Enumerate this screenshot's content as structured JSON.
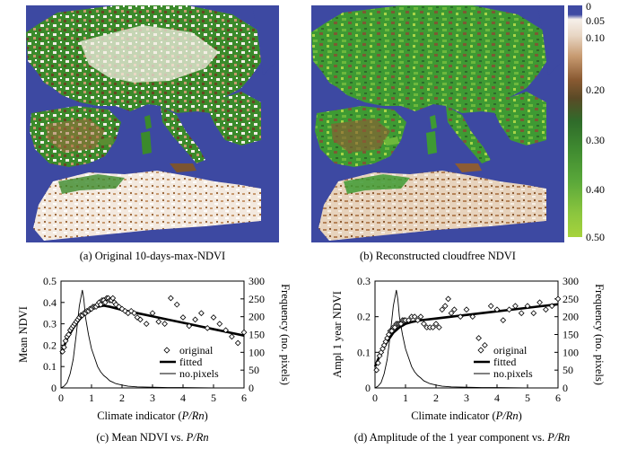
{
  "maps": [
    {
      "id": "a",
      "caption": "(a) Original 10-days-max-NDVI"
    },
    {
      "id": "b",
      "caption": "(b) Reconstructed cloudfree NDVI"
    }
  ],
  "colorbar": {
    "labels": [
      "0",
      "0.05",
      "0.10",
      "0.20",
      "0.30",
      "0.40",
      "0.50"
    ],
    "colors": [
      "#3f4aa3",
      "#f6f0ea",
      "#d6b394",
      "#8a5a32",
      "#2f6b2a",
      "#4d9a35",
      "#a6d33c"
    ]
  },
  "captions": {
    "c": "(c) Mean NDVI vs. ",
    "c_italic": "P/Rn",
    "d": "(d) Amplitude of the 1 year component  vs. ",
    "d_italic": "P/Rn"
  },
  "chart_data": [
    {
      "type": "scatter",
      "ylabel": "Mean NDVI",
      "y2label": "Frequency (no. pixels)",
      "xlabel": "Climate indicator (",
      "xlabel_italic": "P/Rn",
      "xlabel_end": ")",
      "xlim": [
        0,
        6
      ],
      "ylim": [
        0,
        0.5
      ],
      "y2lim": [
        0,
        300
      ],
      "xticks": [
        "0",
        "1",
        "2",
        "3",
        "4",
        "5",
        "6"
      ],
      "yticks": [
        "0",
        "0.1",
        "0.2",
        "0.3",
        "0.4",
        "0.5"
      ],
      "y2ticks": [
        "0",
        "50",
        "100",
        "150",
        "200",
        "250",
        "300"
      ],
      "legend": [
        "original",
        "fitted",
        "no.pixels"
      ],
      "original": {
        "x": [
          0.05,
          0.1,
          0.15,
          0.2,
          0.25,
          0.3,
          0.35,
          0.4,
          0.45,
          0.5,
          0.55,
          0.6,
          0.65,
          0.7,
          0.75,
          0.8,
          0.85,
          0.9,
          0.95,
          1.0,
          1.05,
          1.1,
          1.15,
          1.2,
          1.25,
          1.3,
          1.35,
          1.4,
          1.45,
          1.5,
          1.55,
          1.6,
          1.65,
          1.7,
          1.75,
          1.8,
          1.9,
          2.0,
          2.1,
          2.2,
          2.3,
          2.4,
          2.5,
          2.6,
          2.8,
          3.0,
          3.2,
          3.4,
          3.6,
          3.8,
          4.0,
          4.2,
          4.4,
          4.6,
          4.8,
          5.0,
          5.2,
          5.4,
          5.6,
          5.8,
          6.0
        ],
        "y": [
          0.17,
          0.19,
          0.22,
          0.24,
          0.25,
          0.27,
          0.28,
          0.29,
          0.3,
          0.31,
          0.32,
          0.33,
          0.34,
          0.34,
          0.35,
          0.35,
          0.36,
          0.36,
          0.37,
          0.37,
          0.38,
          0.38,
          0.38,
          0.39,
          0.4,
          0.39,
          0.41,
          0.41,
          0.4,
          0.42,
          0.42,
          0.41,
          0.41,
          0.42,
          0.4,
          0.39,
          0.38,
          0.37,
          0.36,
          0.35,
          0.36,
          0.35,
          0.33,
          0.32,
          0.3,
          0.35,
          0.31,
          0.3,
          0.42,
          0.39,
          0.33,
          0.29,
          0.32,
          0.35,
          0.28,
          0.33,
          0.3,
          0.27,
          0.24,
          0.21,
          0.26
        ]
      },
      "fitted": {
        "x": [
          0,
          0.2,
          0.4,
          0.6,
          0.8,
          1.0,
          1.2,
          1.4,
          1.6,
          2.0,
          2.5,
          3.0,
          3.5,
          4.0,
          4.5,
          5.0,
          5.5,
          6.0
        ],
        "y": [
          0.16,
          0.23,
          0.28,
          0.32,
          0.35,
          0.37,
          0.38,
          0.385,
          0.38,
          0.365,
          0.35,
          0.335,
          0.32,
          0.305,
          0.29,
          0.275,
          0.26,
          0.245
        ]
      },
      "pixels": {
        "x": [
          0,
          0.1,
          0.2,
          0.3,
          0.4,
          0.5,
          0.6,
          0.7,
          0.75,
          0.8,
          0.9,
          1.0,
          1.1,
          1.2,
          1.3,
          1.4,
          1.5,
          1.6,
          1.8,
          2.0,
          2.2,
          2.5,
          3.0,
          3.5,
          4.0,
          5.0,
          6.0
        ],
        "y": [
          0,
          5,
          15,
          40,
          80,
          150,
          230,
          275,
          248,
          200,
          150,
          110,
          85,
          60,
          45,
          35,
          28,
          20,
          12,
          8,
          5,
          3,
          2,
          1,
          1,
          0,
          0
        ]
      }
    },
    {
      "type": "scatter",
      "ylabel": "Ampl 1 year NDVI",
      "y2label": "Frequency (no. pixels)",
      "xlabel": "Climate indicator (",
      "xlabel_italic": "P/Rn",
      "xlabel_end": ")",
      "xlim": [
        0,
        6
      ],
      "ylim": [
        0,
        0.3
      ],
      "y2lim": [
        0,
        300
      ],
      "xticks": [
        "0",
        "1",
        "2",
        "3",
        "4",
        "5",
        "6"
      ],
      "yticks": [
        "0",
        "0.1",
        "0.2",
        "0.3"
      ],
      "y2ticks": [
        "0",
        "50",
        "100",
        "150",
        "200",
        "250",
        "300"
      ],
      "legend": [
        "original",
        "fitted",
        "no.pixels"
      ],
      "original": {
        "x": [
          0.05,
          0.1,
          0.15,
          0.2,
          0.25,
          0.3,
          0.35,
          0.4,
          0.45,
          0.5,
          0.55,
          0.6,
          0.65,
          0.7,
          0.75,
          0.8,
          0.85,
          0.9,
          0.95,
          1.0,
          1.1,
          1.2,
          1.3,
          1.4,
          1.5,
          1.6,
          1.7,
          1.8,
          1.9,
          2.0,
          2.1,
          2.2,
          2.3,
          2.4,
          2.5,
          2.6,
          2.8,
          3.0,
          3.2,
          3.4,
          3.6,
          3.8,
          4.0,
          4.2,
          4.4,
          4.6,
          4.8,
          5.0,
          5.2,
          5.4,
          5.6,
          5.8,
          6.0
        ],
        "y": [
          0.05,
          0.07,
          0.09,
          0.1,
          0.11,
          0.12,
          0.13,
          0.14,
          0.15,
          0.16,
          0.16,
          0.17,
          0.17,
          0.18,
          0.18,
          0.18,
          0.18,
          0.19,
          0.19,
          0.19,
          0.19,
          0.2,
          0.2,
          0.19,
          0.2,
          0.18,
          0.17,
          0.17,
          0.17,
          0.18,
          0.17,
          0.22,
          0.23,
          0.25,
          0.21,
          0.22,
          0.2,
          0.22,
          0.2,
          0.14,
          0.12,
          0.23,
          0.22,
          0.19,
          0.22,
          0.23,
          0.21,
          0.23,
          0.21,
          0.24,
          0.22,
          0.23,
          0.25
        ]
      },
      "fitted": {
        "x": [
          0,
          0.2,
          0.4,
          0.6,
          0.8,
          1.0,
          1.2,
          1.5,
          2.0,
          2.5,
          3.0,
          3.5,
          4.0,
          4.5,
          5.0,
          5.5,
          6.0
        ],
        "y": [
          0.06,
          0.1,
          0.13,
          0.155,
          0.17,
          0.18,
          0.185,
          0.19,
          0.195,
          0.2,
          0.205,
          0.21,
          0.215,
          0.22,
          0.225,
          0.23,
          0.235
        ]
      },
      "pixels": {
        "x": [
          0,
          0.1,
          0.2,
          0.3,
          0.4,
          0.5,
          0.6,
          0.7,
          0.75,
          0.8,
          0.9,
          1.0,
          1.1,
          1.2,
          1.3,
          1.4,
          1.5,
          1.6,
          1.8,
          2.0,
          2.2,
          2.5,
          3.0,
          3.5,
          4.0,
          5.0,
          6.0
        ],
        "y": [
          0,
          5,
          15,
          40,
          80,
          150,
          230,
          275,
          248,
          200,
          150,
          110,
          85,
          60,
          45,
          35,
          28,
          20,
          12,
          8,
          5,
          3,
          2,
          1,
          1,
          0,
          0
        ]
      }
    }
  ]
}
